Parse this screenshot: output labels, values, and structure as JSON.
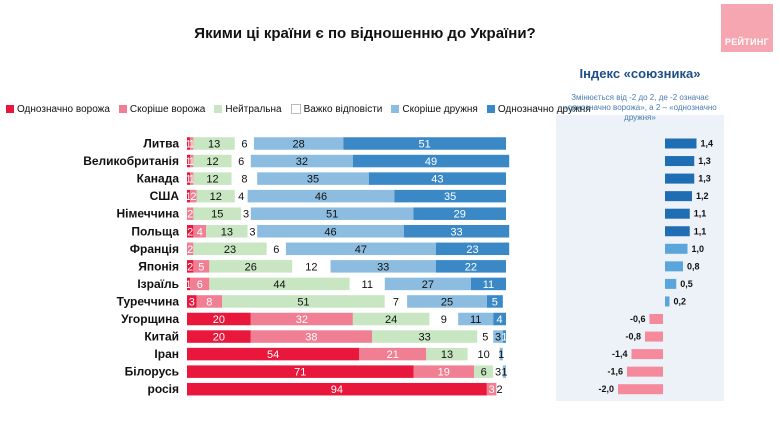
{
  "title": "Якими ці країни є по відношенню до України?",
  "logo": {
    "text": "РЕЙТИНГ"
  },
  "index": {
    "title": "Індекс «союзника»",
    "subtitle": "Змінюється від -2 до 2, де -2 означає «однозначно ворожа», а 2 – «однозначно дружня»"
  },
  "colors": {
    "Однозначно ворожа": "#e8173b",
    "Скоріше ворожа": "#f07f93",
    "Нейтральна": "#c7e6c1",
    "Важко відповісти": "#ffffff",
    "Скоріше дружня": "#8cbde0",
    "Однозначно дружня": "#3a88c6",
    "index_positive_dark": "#1f6db3",
    "index_positive_light": "#5aa6dc",
    "index_negative": "#f48a9c"
  },
  "chart_data": [
    {
      "type": "bar",
      "orientation": "horizontal",
      "stacked": true,
      "categories": [
        "Литва",
        "Великобританія",
        "Канада",
        "США",
        "Німеччина",
        "Польща",
        "Франція",
        "Японія",
        "Ізраїль",
        "Туреччина",
        "Угорщина",
        "Китай",
        "Іран",
        "Білорусь",
        "росія"
      ],
      "series": [
        {
          "name": "Однозначно ворожа",
          "values": [
            1,
            1,
            1,
            1,
            0,
            2,
            0,
            2,
            1,
            3,
            20,
            20,
            54,
            71,
            94
          ]
        },
        {
          "name": "Скоріше ворожа",
          "values": [
            1,
            1,
            1,
            2,
            2,
            4,
            2,
            5,
            6,
            8,
            32,
            38,
            21,
            19,
            3
          ]
        },
        {
          "name": "Нейтральна",
          "values": [
            13,
            12,
            12,
            12,
            15,
            13,
            23,
            26,
            44,
            51,
            24,
            33,
            13,
            6,
            0
          ]
        },
        {
          "name": "Важко відповісти",
          "values": [
            6,
            6,
            8,
            4,
            3,
            3,
            6,
            12,
            11,
            7,
            9,
            5,
            10,
            3,
            2
          ]
        },
        {
          "name": "Скоріше дружня",
          "values": [
            28,
            32,
            35,
            46,
            51,
            46,
            47,
            33,
            27,
            25,
            11,
            3,
            1,
            1,
            0
          ]
        },
        {
          "name": "Однозначно дружня",
          "values": [
            51,
            49,
            43,
            35,
            29,
            33,
            23,
            22,
            11,
            5,
            4,
            1,
            0,
            0,
            0
          ]
        }
      ],
      "xlim": [
        0,
        100
      ],
      "legend": "top"
    },
    {
      "type": "bar",
      "orientation": "horizontal",
      "title": "Індекс «союзника»",
      "categories": [
        "Литва",
        "Великобританія",
        "Канада",
        "США",
        "Німеччина",
        "Польща",
        "Франція",
        "Японія",
        "Ізраїль",
        "Туреччина",
        "Угорщина",
        "Китай",
        "Іран",
        "Білорусь",
        "росія"
      ],
      "values": [
        1.4,
        1.3,
        1.3,
        1.2,
        1.1,
        1.1,
        1.0,
        0.8,
        0.5,
        0.2,
        -0.6,
        -0.8,
        -1.4,
        -1.6,
        -2.0
      ],
      "value_labels": [
        "1,4",
        "1,3",
        "1,3",
        "1,2",
        "1,1",
        "1,1",
        "1,0",
        "0,8",
        "0,5",
        "0,2",
        "-0,6",
        "-0,8",
        "-1,4",
        "-1,6",
        "-2,0"
      ],
      "xlim": [
        -2,
        2
      ]
    }
  ]
}
